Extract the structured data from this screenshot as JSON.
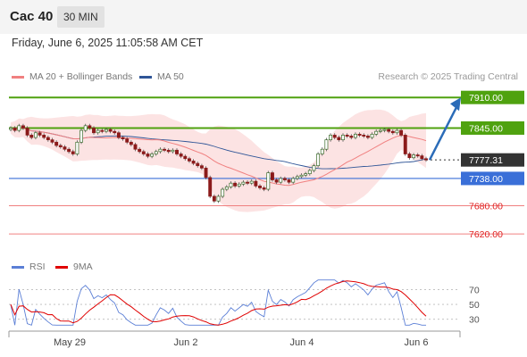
{
  "header": {
    "instrument": "Cac 40",
    "timeframe": "30 MIN"
  },
  "datetime": "Friday, June 6, 2025 11:05:58 AM CET",
  "legend": {
    "ma20": {
      "label": "MA 20 + Bollinger Bands",
      "color": "#f08080"
    },
    "ma50": {
      "label": "MA 50",
      "color": "#2f5597"
    }
  },
  "source": "Research © 2025 Trading Central",
  "rsi_legend": {
    "rsi": {
      "label": "RSI",
      "color": "#5b7fd6"
    },
    "ma": {
      "label": "9MA",
      "color": "#e00000"
    }
  },
  "colors": {
    "green": "#4fa20f",
    "blue": "#3a6fd8",
    "red": "#f08080",
    "current": "#333333",
    "arrow": "#2b6cb8"
  },
  "chart_data": {
    "type": "candlestick",
    "y_range": [
      7590,
      7935
    ],
    "x_labels": [
      "May 29",
      "Jun 2",
      "Jun 4",
      "Jun 6"
    ],
    "levels": [
      {
        "value": 7910.0,
        "label": "7910.00",
        "style": "green-solid"
      },
      {
        "value": 7845.0,
        "label": "7845.00",
        "style": "green-solid"
      },
      {
        "value": 7777.31,
        "label": "7777.31",
        "style": "current-dotted"
      },
      {
        "value": 7738.0,
        "label": "7738.00",
        "style": "blue-solid"
      },
      {
        "value": 7680.0,
        "label": "7680.00",
        "style": "red-thin"
      },
      {
        "value": 7620.0,
        "label": "7620.00",
        "style": "red-thin"
      }
    ],
    "closes": [
      7845,
      7840,
      7850,
      7845,
      7830,
      7825,
      7835,
      7830,
      7825,
      7820,
      7815,
      7808,
      7805,
      7800,
      7795,
      7790,
      7815,
      7840,
      7850,
      7845,
      7835,
      7840,
      7838,
      7842,
      7838,
      7835,
      7825,
      7822,
      7815,
      7810,
      7800,
      7795,
      7790,
      7785,
      7790,
      7795,
      7800,
      7798,
      7795,
      7798,
      7790,
      7785,
      7780,
      7775,
      7770,
      7765,
      7760,
      7740,
      7700,
      7690,
      7700,
      7715,
      7720,
      7728,
      7722,
      7726,
      7730,
      7728,
      7732,
      7722,
      7718,
      7715,
      7750,
      7735,
      7730,
      7738,
      7735,
      7730,
      7738,
      7742,
      7745,
      7748,
      7755,
      7765,
      7790,
      7800,
      7820,
      7830,
      7825,
      7820,
      7830,
      7828,
      7825,
      7832,
      7830,
      7828,
      7825,
      7832,
      7838,
      7840,
      7842,
      7838,
      7835,
      7840,
      7830,
      7790,
      7782,
      7788,
      7786,
      7780,
      7777.31
    ],
    "projection": {
      "from": 7777.31,
      "to": 7910
    },
    "rsi": {
      "levels": [
        70,
        50,
        30
      ],
      "y_range": [
        20,
        85
      ]
    }
  }
}
